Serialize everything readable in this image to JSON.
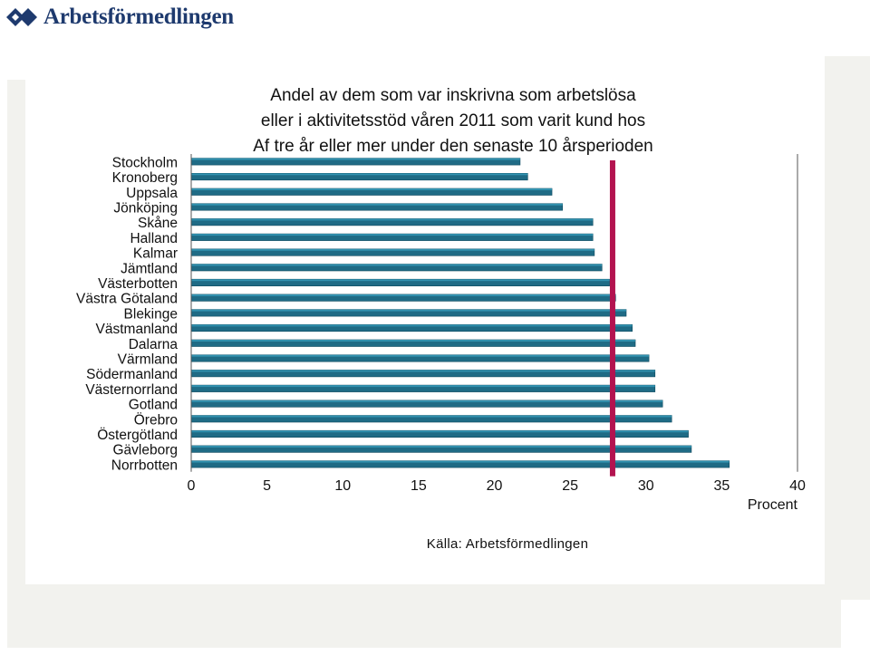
{
  "logo": {
    "text": "Arbetsförmedlingen",
    "icon": "arbetsformedlingen-logo-icon"
  },
  "colors": {
    "bar": "#1f6b85",
    "bar_highlight": "#3aa3c2",
    "average_line": "#b3134f",
    "background_shape": "#f2f2ee"
  },
  "chart_data": {
    "type": "bar",
    "orientation": "horizontal",
    "title_lines": [
      "Andel av dem som var inskrivna som arbetslösa",
      "eller i aktivitetsstöd våren 2011 som varit kund hos",
      "Af tre år eller mer under den senaste 10 årsperioden"
    ],
    "categories": [
      "Stockholm",
      "Kronoberg",
      "Uppsala",
      "Jönköping",
      "Skåne",
      "Halland",
      "Kalmar",
      "Jämtland",
      "Västerbotten",
      "Västra Götaland",
      "Blekinge",
      "Västmanland",
      "Dalarna",
      "Värmland",
      "Södermanland",
      "Västernorrland",
      "Gotland",
      "Örebro",
      "Östergötland",
      "Gävleborg",
      "Norrbotten"
    ],
    "values": [
      21.7,
      22.2,
      23.8,
      24.5,
      26.5,
      26.5,
      26.6,
      27.1,
      27.6,
      28.0,
      28.7,
      29.1,
      29.3,
      30.2,
      30.6,
      30.6,
      31.1,
      31.7,
      32.8,
      33.0,
      35.5
    ],
    "reference_line": {
      "value": 27.8
    },
    "xlim": [
      0,
      40
    ],
    "xticks": [
      0,
      5,
      10,
      15,
      20,
      25,
      30,
      35,
      40
    ],
    "xlabel": "Procent",
    "ylabel": "",
    "grid": false,
    "legend": false
  },
  "source_note": "Källa: Arbetsförmedlingen"
}
